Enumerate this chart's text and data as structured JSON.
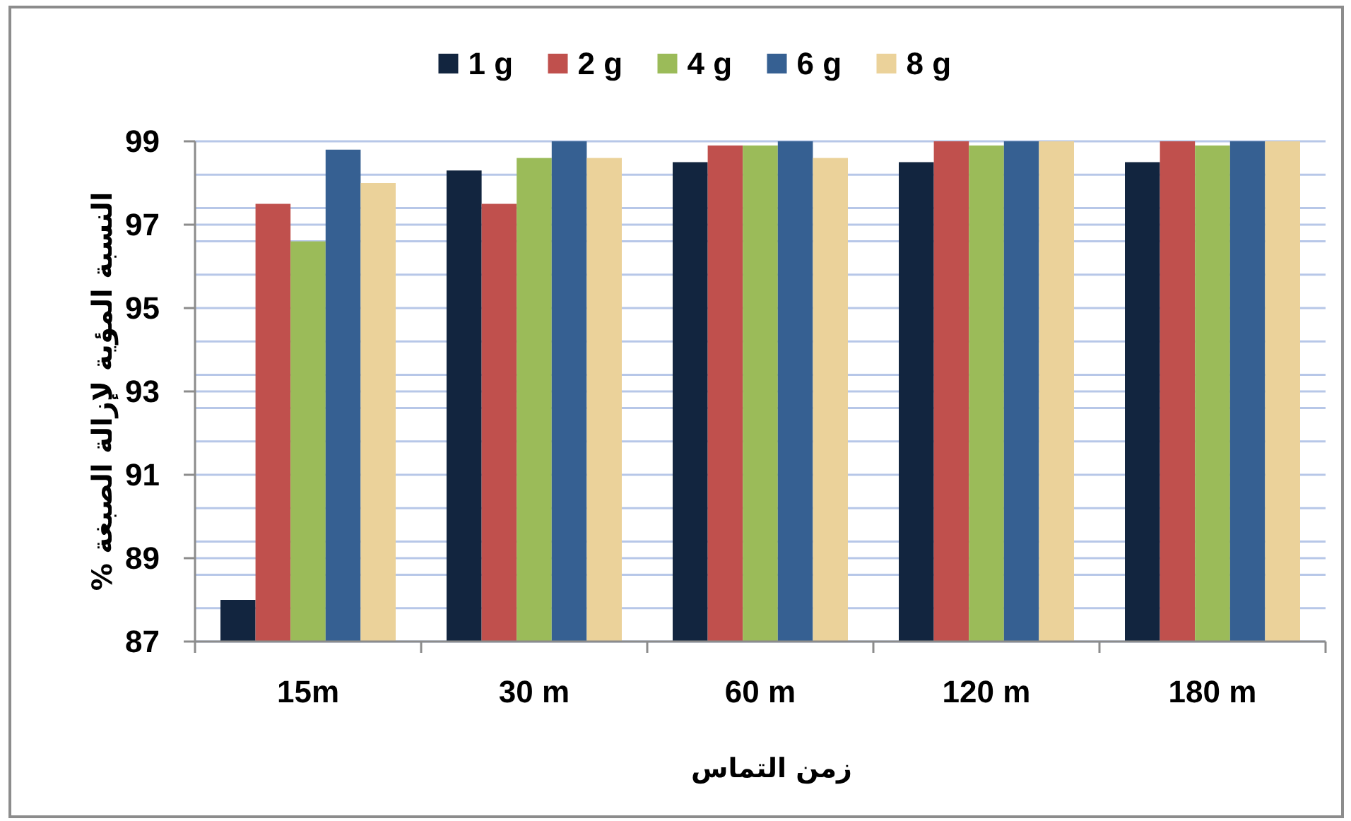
{
  "chart_data": {
    "type": "bar",
    "categories": [
      "15m",
      "30 m",
      "60 m",
      "120 m",
      "180 m"
    ],
    "series": [
      {
        "name": "1 g",
        "color": "#12253f",
        "values": [
          88.0,
          98.3,
          98.5,
          98.5,
          98.5
        ]
      },
      {
        "name": "2 g",
        "color": "#c0504d",
        "values": [
          97.5,
          97.5,
          98.9,
          99.0,
          99.0
        ]
      },
      {
        "name": "4 g",
        "color": "#9bbb59",
        "values": [
          96.6,
          98.6,
          98.9,
          98.9,
          98.9
        ]
      },
      {
        "name": "6 g",
        "color": "#366092",
        "values": [
          98.8,
          99.0,
          99.0,
          99.0,
          99.0
        ]
      },
      {
        "name": "8 g",
        "color": "#ebd29a",
        "values": [
          98.0,
          98.6,
          98.6,
          99.0,
          99.0
        ]
      }
    ],
    "ylim": [
      87,
      99
    ],
    "yticks": [
      87,
      {
        "value": 87.8,
        "label": null
      },
      {
        "value": 88.6,
        "label": null
      },
      89,
      {
        "value": 89.4,
        "label": null
      },
      {
        "value": 90.2,
        "label": null
      },
      91,
      {
        "value": 91.8,
        "label": null
      },
      {
        "value": 92.6,
        "label": null
      },
      93,
      {
        "value": 93.4,
        "label": null
      },
      {
        "value": 94.2,
        "label": null
      },
      95,
      {
        "value": 95.8,
        "label": null
      },
      {
        "value": 96.6,
        "label": null
      },
      97,
      {
        "value": 97.4,
        "label": null
      },
      {
        "value": 98.2,
        "label": null
      },
      99
    ],
    "grid": "y",
    "legend": "top",
    "xlabel": "زمن التماس",
    "ylabel": "النسبة المؤية لإزالة الصبغة %"
  }
}
